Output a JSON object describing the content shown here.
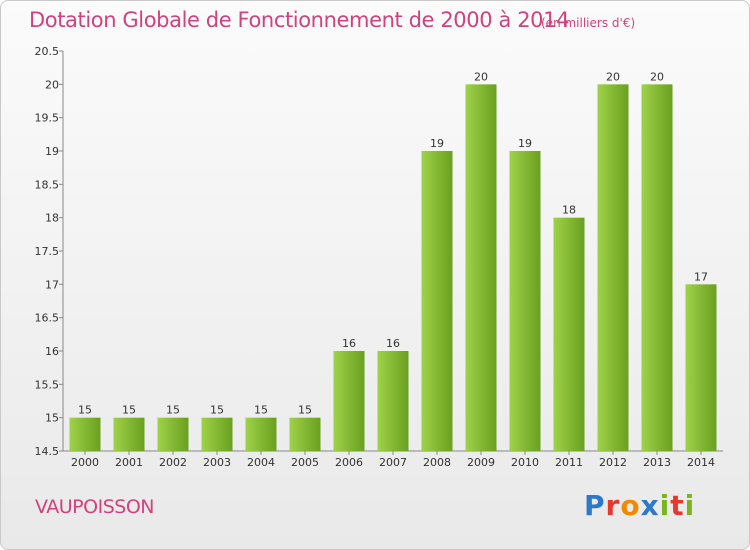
{
  "page": {
    "title": "Dotation Globale de Fonctionnement de 2000 à 2014",
    "subtitle": "(en milliers d'€)",
    "commune": "VAUPOISSON",
    "brand": [
      "P",
      "r",
      "o",
      "x",
      "i",
      "t",
      "i"
    ],
    "brand_colors": [
      "#2f78c6",
      "#e8372d",
      "#f08a00",
      "#2f78c6",
      "#7ab51d",
      "#e8372d",
      "#7ab51d"
    ]
  },
  "chart_data": {
    "type": "bar",
    "title": "Dotation Globale de Fonctionnement de 2000 à 2014",
    "subtitle": "(en milliers d'€)",
    "categories": [
      "2000",
      "2001",
      "2002",
      "2003",
      "2004",
      "2005",
      "2006",
      "2007",
      "2008",
      "2009",
      "2010",
      "2011",
      "2012",
      "2013",
      "2014"
    ],
    "values": [
      15,
      15,
      15,
      15,
      15,
      15,
      16,
      16,
      19,
      20,
      19,
      18,
      20,
      20,
      17
    ],
    "data_labels": [
      "15",
      "15",
      "15",
      "15",
      "15",
      "15",
      "16",
      "16",
      "19",
      "20",
      "19",
      "18",
      "20",
      "20",
      "17"
    ],
    "ylim": [
      14.5,
      20.5
    ],
    "yticks": [
      "14.5",
      "15",
      "15.5",
      "16",
      "16.5",
      "17",
      "17.5",
      "18",
      "18.5",
      "19",
      "19.5",
      "20",
      "20.5"
    ],
    "grid": false,
    "bar_color_light": "#9fd24a",
    "bar_color_dark": "#6aa01f"
  }
}
